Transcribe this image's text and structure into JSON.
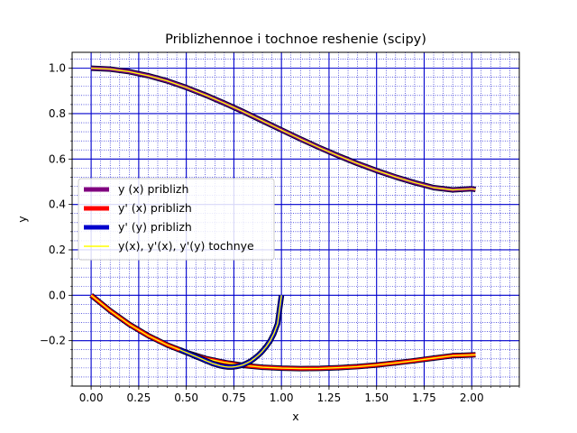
{
  "chart_data": {
    "type": "line",
    "title": "Priblizhennoe i tochnoe reshenie (scipy)",
    "xlabel": "x",
    "ylabel": "y",
    "xlim": [
      -0.1,
      2.25
    ],
    "ylim": [
      -0.4,
      1.07
    ],
    "xticks": [
      0.0,
      0.25,
      0.5,
      0.75,
      1.0,
      1.25,
      1.5,
      1.75,
      2.0
    ],
    "xtick_labels": [
      "0.00",
      "0.25",
      "0.50",
      "0.75",
      "1.00",
      "1.25",
      "1.50",
      "1.75",
      "2.00"
    ],
    "yticks": [
      -0.2,
      0.0,
      0.2,
      0.4,
      0.6,
      0.8,
      1.0
    ],
    "ytick_labels": [
      "−0.2",
      "0.0",
      "0.2",
      "0.4",
      "0.6",
      "0.8",
      "1.0"
    ],
    "grid": true,
    "minor_grid": true,
    "legend_position": "center-left",
    "series": [
      {
        "name": "y (x) priblizh",
        "color": "#800080",
        "x": [
          0.0,
          0.1,
          0.2,
          0.3,
          0.4,
          0.5,
          0.6,
          0.7,
          0.8,
          0.9,
          1.0,
          1.1,
          1.2,
          1.3,
          1.4,
          1.5,
          1.6,
          1.7,
          1.8,
          1.9,
          2.0,
          2.02
        ],
        "y": [
          1.0,
          0.996,
          0.985,
          0.967,
          0.944,
          0.915,
          0.882,
          0.846,
          0.808,
          0.768,
          0.728,
          0.688,
          0.65,
          0.614,
          0.58,
          0.549,
          0.521,
          0.496,
          0.474,
          0.464,
          0.469,
          0.466
        ]
      },
      {
        "name": "y' (x) priblizh",
        "color": "#ff0000",
        "x": [
          0.0,
          0.1,
          0.2,
          0.3,
          0.4,
          0.5,
          0.6,
          0.7,
          0.8,
          0.9,
          1.0,
          1.1,
          1.2,
          1.3,
          1.4,
          1.5,
          1.6,
          1.7,
          1.8,
          1.9,
          2.0,
          2.02
        ],
        "y": [
          0.0,
          -0.068,
          -0.128,
          -0.178,
          -0.219,
          -0.252,
          -0.278,
          -0.296,
          -0.309,
          -0.317,
          -0.321,
          -0.323,
          -0.322,
          -0.319,
          -0.314,
          -0.307,
          -0.298,
          -0.288,
          -0.277,
          -0.266,
          -0.263,
          -0.262
        ]
      },
      {
        "name": "y' (y) priblizh",
        "color": "#0000cd",
        "x": [
          1.0,
          0.98,
          0.96,
          0.94,
          0.92,
          0.9,
          0.88,
          0.86,
          0.84,
          0.82,
          0.8,
          0.78,
          0.76,
          0.74,
          0.72,
          0.7,
          0.68,
          0.66,
          0.64,
          0.62,
          0.6,
          0.58,
          0.56,
          0.54,
          0.52,
          0.5,
          0.48,
          0.466
        ],
        "y": [
          0.0,
          -0.125,
          -0.17,
          -0.202,
          -0.226,
          -0.246,
          -0.263,
          -0.277,
          -0.289,
          -0.298,
          -0.306,
          -0.311,
          -0.314,
          -0.316,
          -0.316,
          -0.314,
          -0.311,
          -0.306,
          -0.301,
          -0.294,
          -0.287,
          -0.28,
          -0.273,
          -0.266,
          -0.259,
          -0.252,
          -0.245,
          -0.24
        ]
      },
      {
        "name": "y(x), y'(x), y'(y) tochnye",
        "color": "#ffff00"
      }
    ]
  }
}
